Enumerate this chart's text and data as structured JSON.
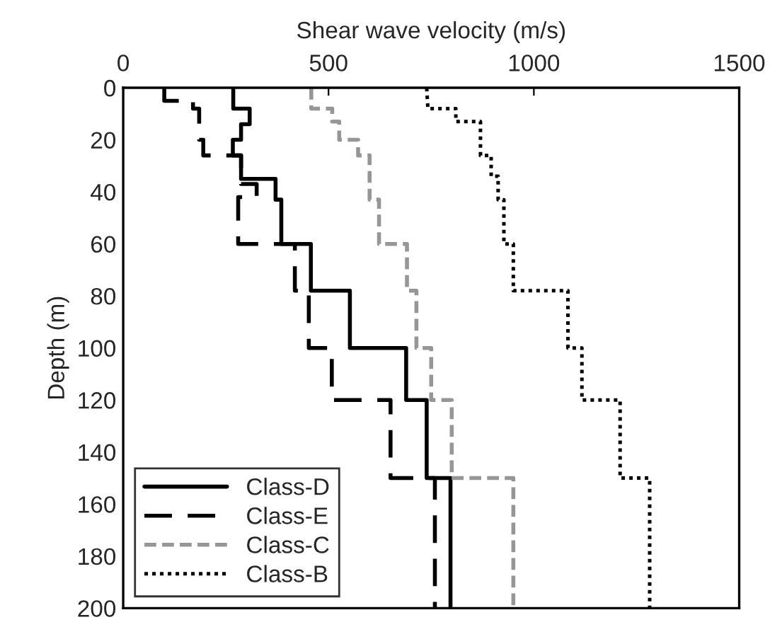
{
  "chart_data": {
    "type": "line",
    "xlabel": "Shear wave velocity (m/s)",
    "ylabel": "Depth (m)",
    "xlim": [
      0,
      1500
    ],
    "xticks": [
      0,
      500,
      1000,
      1500
    ],
    "ylim": [
      200,
      0
    ],
    "yticks": [
      0,
      20,
      40,
      60,
      80,
      100,
      120,
      140,
      160,
      180,
      200
    ],
    "grid": false,
    "legend": "bottom left",
    "marker": "none",
    "series": [
      {
        "name": "Class-D",
        "color": "#000000",
        "line_style": "solid",
        "x": [
          268,
          268,
          308,
          308,
          287,
          287,
          267,
          267,
          287,
          287,
          371,
          371,
          385,
          385,
          457,
          457,
          552,
          552,
          689,
          689,
          739,
          739,
          797,
          797
        ],
        "values": [
          0,
          8,
          8,
          14,
          14,
          20,
          20,
          26,
          26,
          35,
          35,
          43,
          43,
          60,
          60,
          78,
          78,
          100,
          100,
          120,
          120,
          150,
          150,
          200
        ]
      },
      {
        "name": "Class-E",
        "color": "#000000",
        "line_style": "longdash",
        "x": [
          100,
          100,
          170,
          170,
          185,
          185,
          195,
          195,
          287,
          287,
          325,
          325,
          280,
          280,
          418,
          418,
          452,
          452,
          508,
          508,
          651,
          651,
          759,
          759
        ],
        "values": [
          0,
          5,
          5,
          8,
          8,
          20,
          20,
          26,
          26,
          37,
          37,
          42,
          42,
          60,
          60,
          78,
          78,
          100,
          100,
          120,
          120,
          150,
          150,
          200
        ]
      },
      {
        "name": "Class-C",
        "color": "#969696",
        "line_style": "dashed",
        "x": [
          458,
          458,
          509,
          509,
          526,
          526,
          572,
          572,
          600,
          600,
          623,
          623,
          691,
          691,
          714,
          714,
          750,
          750,
          800,
          800,
          950,
          950
        ],
        "values": [
          0,
          8,
          8,
          13,
          13,
          20,
          20,
          26,
          26,
          43,
          43,
          60,
          60,
          78,
          78,
          100,
          100,
          120,
          120,
          150,
          150,
          200
        ]
      },
      {
        "name": "Class-B",
        "color": "#000000",
        "line_style": "dotted",
        "x": [
          739,
          742,
          810,
          810,
          870,
          870,
          896,
          896,
          913,
          913,
          927,
          927,
          950,
          950,
          1083,
          1083,
          1117,
          1117,
          1210,
          1210,
          1282,
          1282
        ],
        "values": [
          0,
          8,
          8,
          13,
          13,
          26,
          26,
          34,
          34,
          43,
          43,
          60,
          60,
          78,
          78,
          100,
          100,
          120,
          120,
          150,
          150,
          200
        ]
      }
    ]
  }
}
